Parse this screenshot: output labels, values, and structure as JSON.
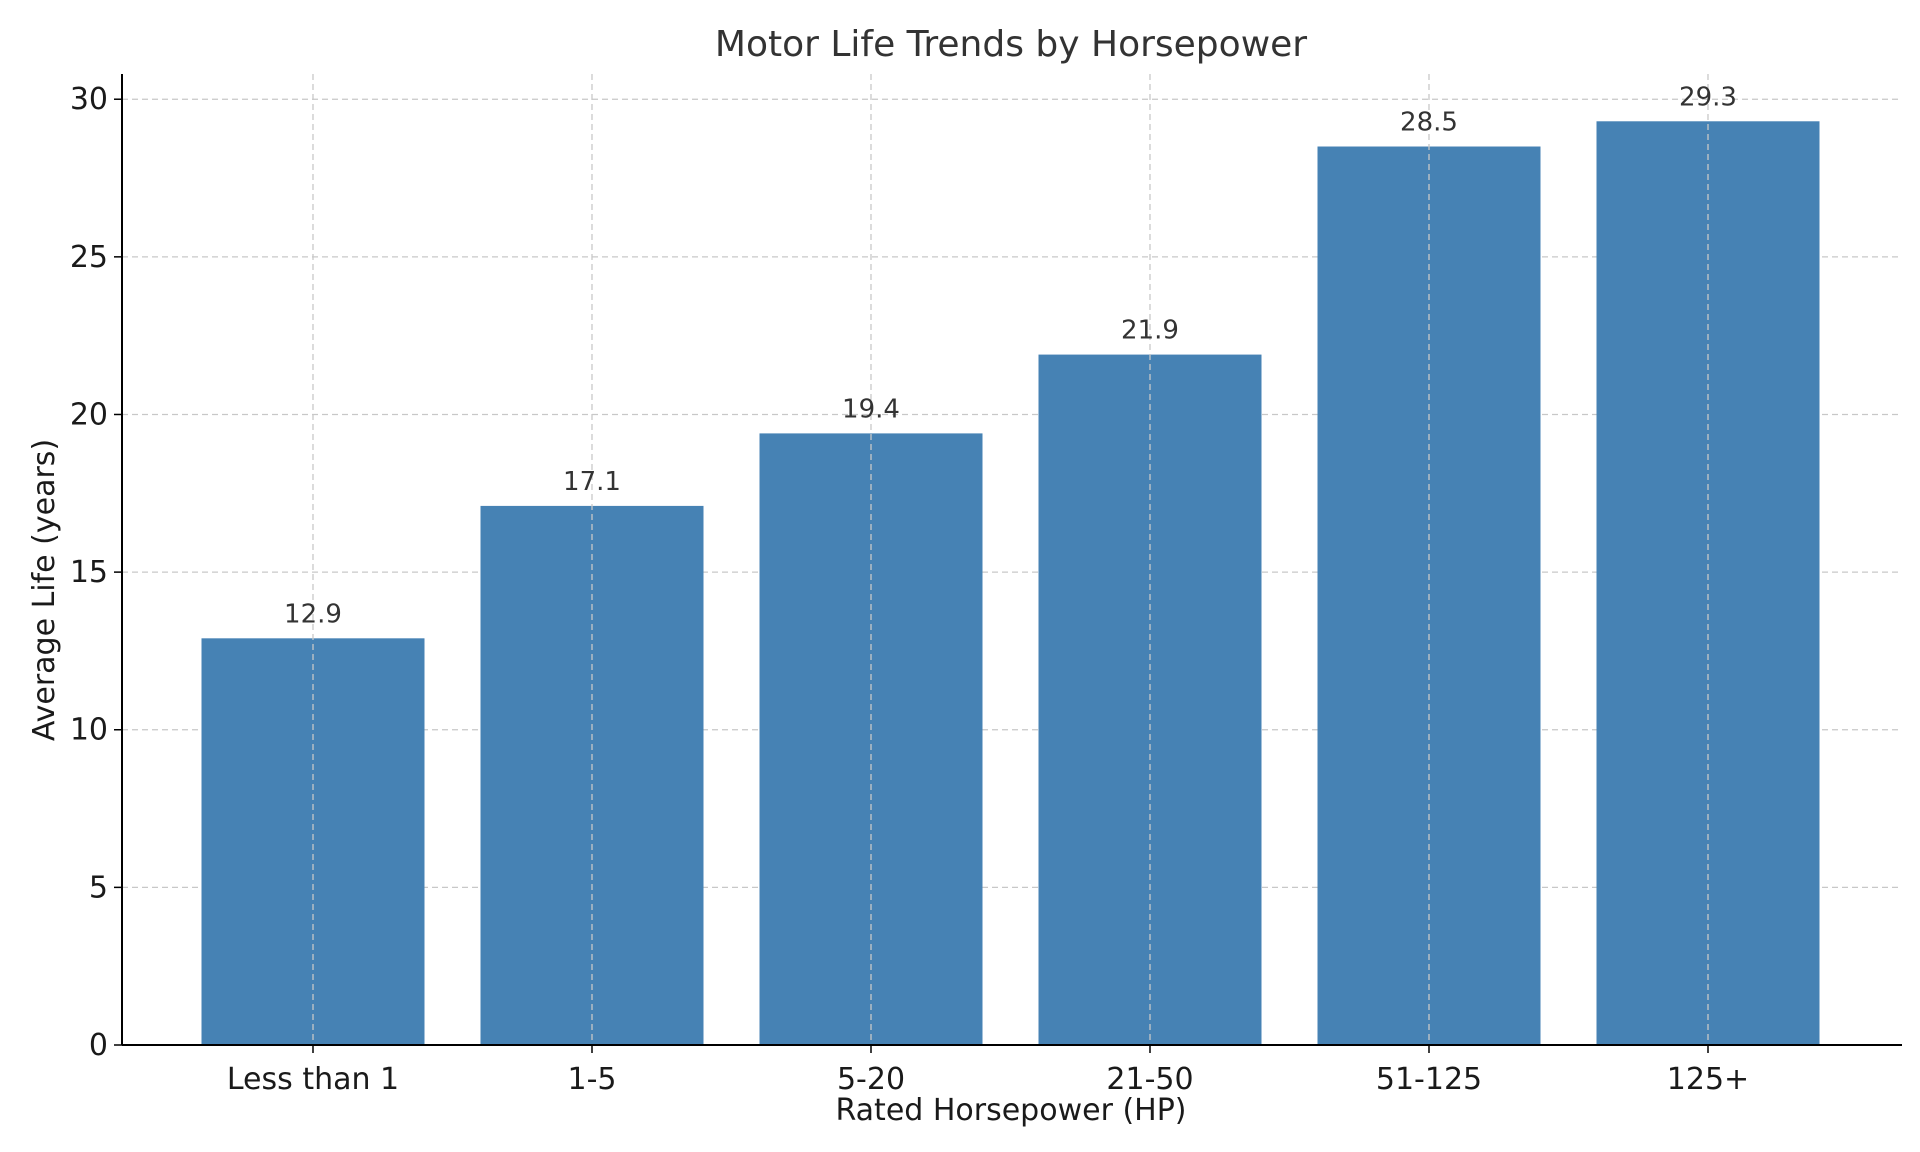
{
  "chart_data": {
    "type": "bar",
    "title": "Motor Life Trends by Horsepower",
    "xlabel": "Rated Horsepower (HP)",
    "ylabel": "Average Life (years)",
    "categories": [
      "Less than 1",
      "1-5",
      "5-20",
      "21-50",
      "51-125",
      "125+"
    ],
    "values": [
      12.9,
      17.1,
      19.4,
      21.9,
      28.5,
      29.3
    ],
    "data_labels": [
      "12.9",
      "17.1",
      "19.4",
      "21.9",
      "28.5",
      "29.3"
    ],
    "ylim": [
      0,
      30.8
    ],
    "yticks": [
      0,
      5,
      10,
      15,
      20,
      25,
      30
    ],
    "ytick_labels": [
      "0",
      "5",
      "10",
      "15",
      "20",
      "25",
      "30"
    ],
    "grid": true,
    "legend": "none",
    "bar_color": "#4682b4",
    "grid_color": "#c8c8c8"
  }
}
